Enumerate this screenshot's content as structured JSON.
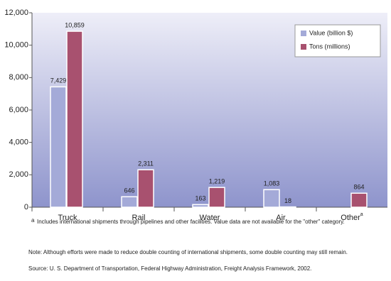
{
  "chart_data": {
    "type": "bar",
    "categories": [
      "Truck",
      "Rail",
      "Water",
      "Air",
      "Other"
    ],
    "series": [
      {
        "name": "Value (billion $)",
        "color": "#a4aad8",
        "values": [
          7429,
          646,
          163,
          1083,
          null
        ],
        "value_labels": [
          "7,429",
          "646",
          "163",
          "1,083",
          null
        ]
      },
      {
        "name": "Tons (millions)",
        "color": "#a8516f",
        "values": [
          10859,
          2311,
          1219,
          18,
          864
        ],
        "value_labels": [
          "10,859",
          "2,311",
          "1,219",
          "18",
          "864"
        ]
      }
    ],
    "ylim": [
      0,
      12000
    ],
    "yticks": [
      0,
      {
        "value": 2000,
        "label": "2,000"
      },
      {
        "value": 4000,
        "label": "4,000"
      },
      {
        "value": 6000,
        "label": "6,000"
      },
      {
        "value": 8000,
        "label": "8,000"
      },
      {
        "value": 10000,
        "label": "10,000"
      },
      {
        "value": 12000,
        "label": "12,000"
      }
    ],
    "legend": "top-right",
    "footnote": {
      "marker": "a",
      "text": "Includes international shipments through pipelines and other facilities. Value data are not available for the \"other\" category."
    },
    "note": "Note: Although efforts were made to reduce double counting of international shipments, some double counting may still remain.",
    "source": "Source: U. S. Department of Transportation, Federal Highway Administration, Freight Analysis Framework, 2002."
  }
}
